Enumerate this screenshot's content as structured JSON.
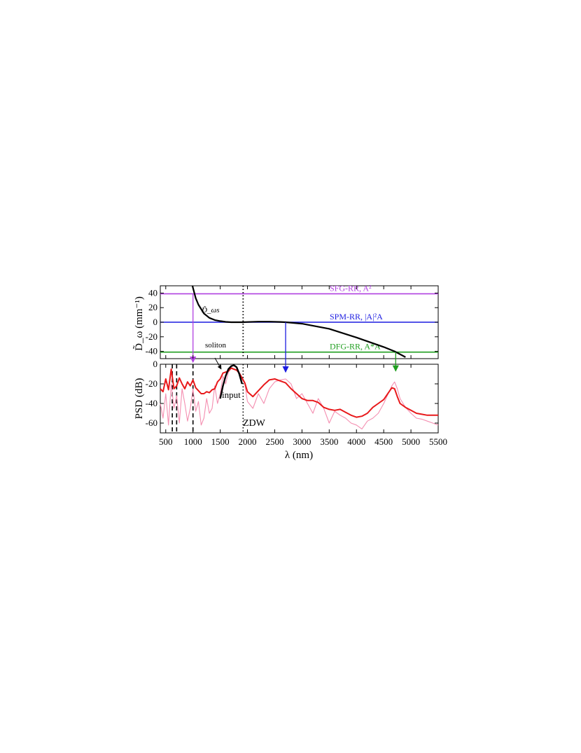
{
  "chart_data": [
    {
      "panel": "top",
      "type": "line",
      "ylabel": "D̃_ω (mm⁻¹)",
      "ylim": [
        -50,
        50
      ],
      "xlim": [
        400,
        5500
      ],
      "yticks": [
        -40,
        -20,
        0,
        20,
        40
      ],
      "ytick_labels": [
        "-40",
        "-20",
        "0",
        "20",
        "40"
      ],
      "curve_label": "D̃_ωs",
      "dispersion_curve": {
        "color": "#000000",
        "x": [
          990,
          1050,
          1100,
          1200,
          1300,
          1400,
          1500,
          1600,
          1700,
          1800,
          1900,
          2000,
          2200,
          2400,
          2600,
          2700,
          3000,
          3500,
          4000,
          4500,
          4700,
          4900
        ],
        "y": [
          50,
          33,
          24,
          12,
          6,
          3,
          1.5,
          0.5,
          0,
          0,
          0,
          0.3,
          0.8,
          0.8,
          0.4,
          0,
          -2,
          -9,
          -21,
          -34,
          -40,
          -48
        ]
      },
      "levels": [
        {
          "name": "SFG-RR, A²",
          "y": 39,
          "color": "#b040e0",
          "crossing_x": 1000
        },
        {
          "name": "SPM-RR, |A|²A",
          "y": 0,
          "color": "#1c1ce0",
          "crossing_x": 2700
        },
        {
          "name": "DFG-RR, A*A",
          "y": -41,
          "color": "#1f9e1f",
          "crossing_x": 4720
        }
      ],
      "vline": {
        "label": "ZDW",
        "x": 1920,
        "style": "dotted"
      }
    },
    {
      "panel": "bottom",
      "type": "line",
      "xlabel": "λ (nm)",
      "ylabel": "PSD (dB)",
      "xlim": [
        400,
        5500
      ],
      "ylim": [
        -70,
        0
      ],
      "xticks": [
        500,
        1000,
        1500,
        2000,
        2500,
        3000,
        3500,
        4000,
        4500,
        5000,
        5500
      ],
      "xtick_labels": [
        "500",
        "1000",
        "1500",
        "2000",
        "2500",
        "3000",
        "3500",
        "4000",
        "4500",
        "5000",
        "5500"
      ],
      "yticks": [
        -60,
        -40,
        -20,
        0
      ],
      "ytick_labels": [
        "-60",
        "-40",
        "-20",
        "0"
      ],
      "annotations": [
        "soliton",
        "input",
        "ZDW"
      ],
      "series": [
        {
          "color": "#f48fb1",
          "x": [
            400,
            450,
            500,
            550,
            600,
            650,
            700,
            750,
            800,
            850,
            900,
            950,
            1000,
            1050,
            1100,
            1150,
            1200,
            1250,
            1300,
            1350,
            1400,
            1450,
            1500,
            1550,
            1600,
            1650,
            1700,
            1750,
            1800,
            1850,
            1900,
            1950,
            2000,
            2100,
            2200,
            2300,
            2400,
            2500,
            2600,
            2700,
            2800,
            2900,
            3000,
            3100,
            3200,
            3300,
            3400,
            3500,
            3600,
            3700,
            3800,
            3900,
            4000,
            4100,
            4200,
            4300,
            4400,
            4500,
            4600,
            4650,
            4700,
            4750,
            4800,
            4900,
            5000,
            5100,
            5200,
            5300,
            5400,
            5500
          ],
          "y": [
            -40,
            -55,
            -30,
            -62,
            -20,
            -45,
            -32,
            -60,
            -25,
            -40,
            -58,
            -45,
            -25,
            -48,
            -38,
            -62,
            -55,
            -35,
            -50,
            -45,
            -22,
            -40,
            -30,
            -12,
            -20,
            -8,
            -3,
            -5,
            -6,
            -10,
            -15,
            -20,
            -38,
            -45,
            -30,
            -40,
            -25,
            -18,
            -16,
            -15,
            -20,
            -35,
            -30,
            -40,
            -50,
            -35,
            -45,
            -60,
            -48,
            -52,
            -55,
            -60,
            -62,
            -66,
            -58,
            -55,
            -50,
            -40,
            -28,
            -22,
            -18,
            -25,
            -35,
            -44,
            -50,
            -55,
            -56,
            -58,
            -60,
            -62
          ]
        },
        {
          "color": "#e8191b",
          "x": [
            400,
            450,
            500,
            550,
            600,
            650,
            700,
            750,
            800,
            850,
            900,
            950,
            1000,
            1050,
            1100,
            1150,
            1200,
            1250,
            1300,
            1350,
            1400,
            1450,
            1500,
            1550,
            1600,
            1650,
            1700,
            1750,
            1800,
            1850,
            1900,
            1950,
            2000,
            2100,
            2200,
            2300,
            2400,
            2500,
            2600,
            2700,
            2800,
            2900,
            3000,
            3100,
            3200,
            3300,
            3400,
            3500,
            3600,
            3700,
            3800,
            3900,
            4000,
            4100,
            4200,
            4300,
            4400,
            4500,
            4600,
            4650,
            4700,
            4750,
            4800,
            4900,
            5000,
            5100,
            5200,
            5300,
            5400,
            5500
          ],
          "y": [
            -25,
            -28,
            -15,
            -26,
            -5,
            -25,
            -22,
            -14,
            -20,
            -25,
            -18,
            -22,
            -16,
            -24,
            -27,
            -30,
            -30,
            -28,
            -29,
            -26,
            -25,
            -18,
            -15,
            -9,
            -8,
            -7,
            -4,
            -5,
            -6,
            -9,
            -14,
            -19,
            -28,
            -33,
            -27,
            -21,
            -16,
            -15,
            -17,
            -19,
            -25,
            -30,
            -35,
            -37,
            -37,
            -39,
            -44,
            -46,
            -47,
            -46,
            -49,
            -52,
            -54,
            -53,
            -50,
            -44,
            -40,
            -36,
            -28,
            -24,
            -25,
            -33,
            -40,
            -44,
            -47,
            -50,
            -51,
            -52,
            -52,
            -52
          ]
        },
        {
          "color": "#000000",
          "x": [
            1500,
            1550,
            1600,
            1650,
            1700,
            1750,
            1800,
            1850,
            1900
          ],
          "y": [
            -35,
            -22,
            -12,
            -5,
            -2,
            -1,
            -3,
            -10,
            -20
          ]
        }
      ],
      "vlines": [
        {
          "x": 1920,
          "style": "dotted"
        },
        {
          "x": 1000,
          "style": "dashed"
        },
        {
          "x": 700,
          "style": "dashed"
        },
        {
          "x": 620,
          "style": "dashed"
        }
      ]
    }
  ]
}
